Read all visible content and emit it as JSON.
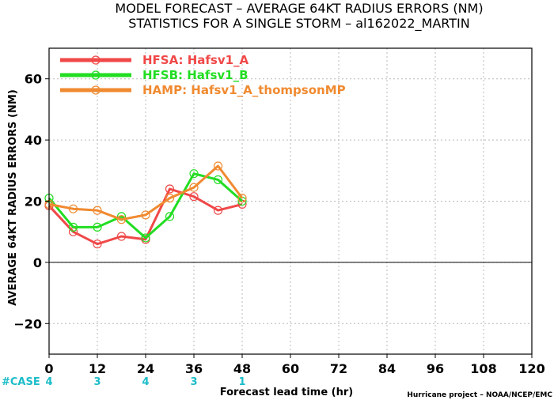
{
  "header": {
    "line1": "MODEL FORECAST – AVERAGE 64KT RADIUS ERRORS (NM)",
    "line2": "STATISTICS FOR A SINGLE STORM – al162022_MARTIN"
  },
  "footer": {
    "case_label": "#CASE",
    "credit": "Hurricane project – NOAA/NCEP/EMC"
  },
  "chart_data": {
    "type": "line",
    "title": "MODEL FORECAST – AVERAGE 64KT RADIUS ERRORS (NM)",
    "subtitle": "STATISTICS FOR A SINGLE STORM – al162022_MARTIN",
    "xlabel": "Forecast lead time (hr)",
    "ylabel": "AVERAGE 64KT RADIUS ERRORS (NM)",
    "xlim": [
      0,
      120
    ],
    "ylim": [
      -30,
      70
    ],
    "xticks": [
      0,
      12,
      24,
      36,
      48,
      60,
      72,
      84,
      96,
      108,
      120
    ],
    "yticks": [
      -20,
      0,
      20,
      40,
      60
    ],
    "grid": true,
    "zero_line": true,
    "legend_position": "top-left",
    "series": [
      {
        "name": "HFSA: Hafsv1_A",
        "color": "#f04848",
        "x": [
          0,
          6,
          12,
          18,
          24,
          30,
          36,
          42,
          48
        ],
        "values": [
          18.5,
          10,
          6,
          8.5,
          7.5,
          24,
          21.5,
          17,
          19
        ]
      },
      {
        "name": "HFSB: Hafsv1_B",
        "color": "#22dd22",
        "x": [
          0,
          6,
          12,
          18,
          24,
          30,
          36,
          42,
          48
        ],
        "values": [
          21,
          11.5,
          11.5,
          15,
          8,
          15,
          29,
          27,
          20
        ]
      },
      {
        "name": "HAMP: Hafsv1_A_thompsonMP",
        "color": "#f08a30",
        "x": [
          0,
          6,
          12,
          18,
          24,
          30,
          36,
          42,
          48
        ],
        "values": [
          19,
          17.5,
          17,
          14,
          15.5,
          21,
          24.5,
          31.5,
          21
        ]
      }
    ],
    "cases": [
      {
        "x": 0,
        "label": "4"
      },
      {
        "x": 12,
        "label": "3"
      },
      {
        "x": 24,
        "label": "4"
      },
      {
        "x": 36,
        "label": "3"
      },
      {
        "x": 48,
        "label": "1"
      }
    ]
  }
}
